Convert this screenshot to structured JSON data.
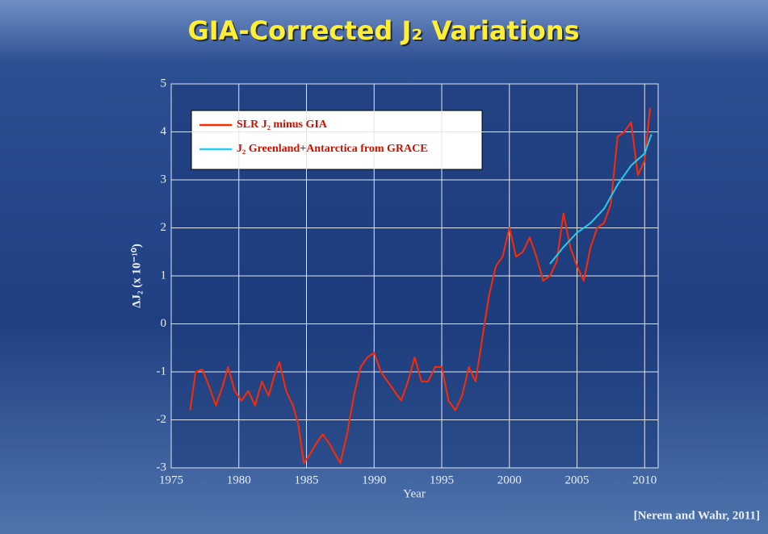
{
  "chart_data": {
    "type": "line",
    "title": "GIA-Corrected J₂ Variations",
    "xlabel": "Year",
    "ylabel": "ΔJ₂ (x 10⁻¹⁰)",
    "source": "[Nerem and Wahr, 2011]",
    "xlim": [
      1975,
      2011
    ],
    "ylim": [
      -3,
      5
    ],
    "xticks": [
      1975,
      1980,
      1985,
      1990,
      1995,
      2000,
      2005,
      2010
    ],
    "yticks": [
      -3,
      -2,
      -1,
      0,
      1,
      2,
      3,
      4,
      5
    ],
    "grid": true,
    "legend": "upper left",
    "series": [
      {
        "name": "SLR J₂ minus GIA",
        "color": "#ff2a00",
        "x": [
          1976.4,
          1976.8,
          1977.3,
          1977.8,
          1978.3,
          1978.8,
          1979.2,
          1979.7,
          1980.2,
          1980.7,
          1981.2,
          1981.7,
          1982.2,
          1982.6,
          1983.0,
          1983.5,
          1984.0,
          1984.4,
          1984.8,
          1985.3,
          1985.7,
          1986.2,
          1986.7,
          1987.1,
          1987.5,
          1988.0,
          1988.5,
          1989.0,
          1989.5,
          1990.0,
          1990.5,
          1991.0,
          1991.5,
          1992.0,
          1992.5,
          1993.0,
          1993.5,
          1994.0,
          1994.5,
          1995.0,
          1995.5,
          1996.0,
          1996.5,
          1997.0,
          1997.5,
          1998.0,
          1998.5,
          1999.0,
          1999.5,
          2000.0,
          2000.5,
          2001.0,
          2001.5,
          2002.0,
          2002.5,
          2003.0,
          2003.5,
          2004.0,
          2004.5,
          2005.0,
          2005.5,
          2006.0,
          2006.5,
          2007.0,
          2007.5,
          2008.0,
          2008.5,
          2009.0,
          2009.5,
          2010.0,
          2010.4
        ],
        "values": [
          -1.8,
          -1.0,
          -0.95,
          -1.3,
          -1.7,
          -1.3,
          -0.9,
          -1.4,
          -1.6,
          -1.4,
          -1.7,
          -1.2,
          -1.5,
          -1.1,
          -0.8,
          -1.4,
          -1.7,
          -2.1,
          -2.9,
          -2.7,
          -2.5,
          -2.3,
          -2.5,
          -2.7,
          -2.9,
          -2.3,
          -1.5,
          -0.9,
          -0.7,
          -0.6,
          -1.0,
          -1.2,
          -1.4,
          -1.6,
          -1.2,
          -0.7,
          -1.2,
          -1.2,
          -0.9,
          -0.9,
          -1.6,
          -1.8,
          -1.5,
          -0.9,
          -1.2,
          -0.3,
          0.6,
          1.2,
          1.4,
          2.0,
          1.4,
          1.5,
          1.8,
          1.4,
          0.9,
          1.0,
          1.3,
          2.3,
          1.6,
          1.2,
          0.9,
          1.6,
          2.0,
          2.1,
          2.5,
          3.9,
          4.0,
          4.2,
          3.1,
          3.4,
          4.5
        ]
      },
      {
        "name": "J₂ Greenland+Antarctica from GRACE",
        "color": "#22ccee",
        "x": [
          2003.0,
          2004.0,
          2005.0,
          2006.0,
          2007.0,
          2008.0,
          2009.0,
          2010.0,
          2010.5
        ],
        "values": [
          1.25,
          1.6,
          1.9,
          2.1,
          2.4,
          2.9,
          3.3,
          3.55,
          3.95
        ]
      }
    ]
  }
}
